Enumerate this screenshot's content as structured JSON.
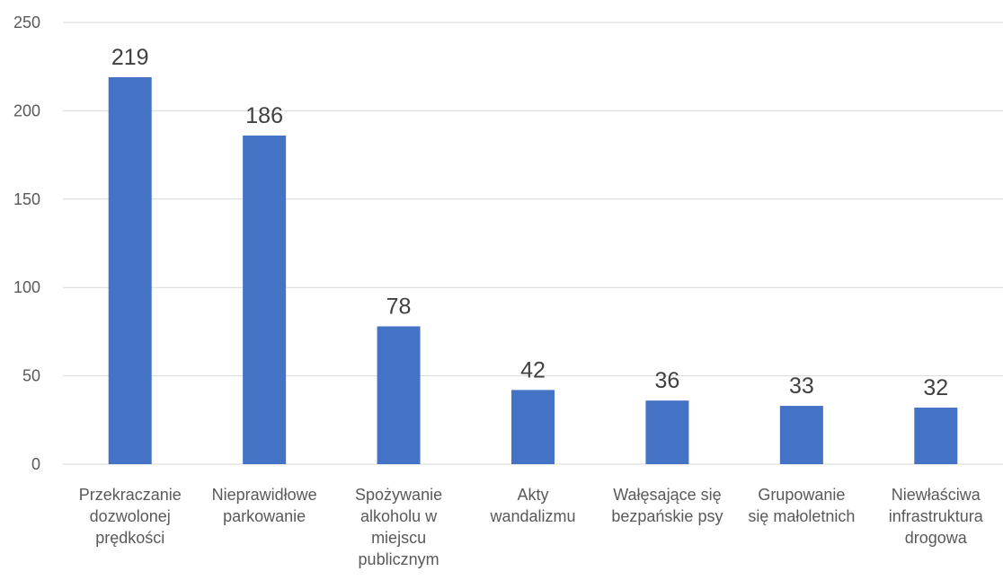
{
  "chart_data": {
    "type": "bar",
    "categories": [
      "Przekraczanie\ndozwolonej\nprędkości",
      "Nieprawidłowe\nparkowanie",
      "Spożywanie\nalkoholu w\nmiejscu\npublicznym",
      "Akty\nwandalizmu",
      "Wałęsające się\nbezpańskie psy",
      "Grupowanie\nsię małoletnich",
      "Niewłaściwa\ninfrastruktura\ndrogowa"
    ],
    "values": [
      219,
      186,
      78,
      42,
      36,
      33,
      32
    ],
    "color": "#4472c4",
    "ylim": [
      0,
      250
    ],
    "yticks": [
      0,
      50,
      100,
      150,
      200,
      250
    ],
    "grid": true
  }
}
